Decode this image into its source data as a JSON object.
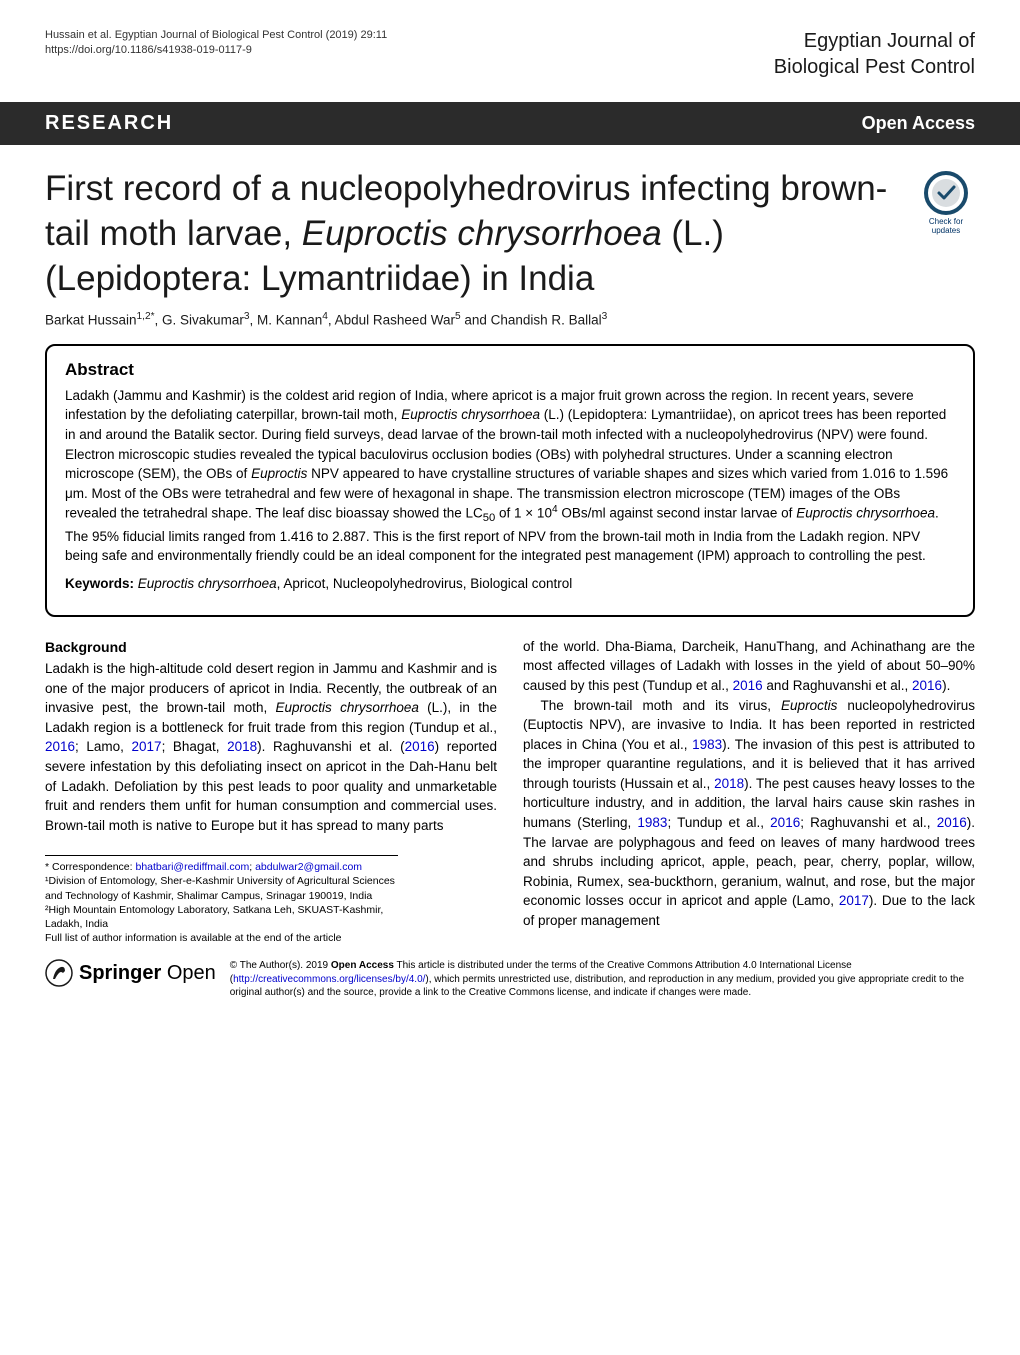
{
  "header": {
    "citation_line1": "Hussain et al. Egyptian Journal of Biological Pest Control       (2019) 29:11",
    "citation_line2": "https://doi.org/10.1186/s41938-019-0117-9",
    "journal_line1": "Egyptian Journal of",
    "journal_line2": "Biological Pest Control"
  },
  "banner": {
    "left": "RESEARCH",
    "right": "Open Access"
  },
  "checkmark": {
    "label": "Check for updates",
    "ring_color": "#194a6b",
    "inner_color": "#d9dde0"
  },
  "title": "First record of a nucleopolyhedrovirus infecting brown-tail moth larvae, Euproctis chrysorrhoea (L.) (Lepidoptera: Lymantriidae) in India",
  "authors_html": "Barkat Hussain<sup>1,2*</sup>, G. Sivakumar<sup>3</sup>, M. Kannan<sup>4</sup>, Abdul Rasheed War<sup>5</sup> and Chandish R. Ballal<sup>3</sup>",
  "abstract": {
    "heading": "Abstract",
    "body_html": "Ladakh (Jammu and Kashmir) is the coldest arid region of India, where apricot is a major fruit grown across the region. In recent years, severe infestation by the defoliating caterpillar, brown-tail moth, <span class=\"italic\">Euproctis chrysorrhoea</span> (L.) (Lepidoptera: Lymantriidae), on apricot trees has been reported in and around the Batalik sector. During field surveys, dead larvae of the brown-tail moth infected with a nucleopolyhedrovirus (NPV) were found. Electron microscopic studies revealed the typical baculovirus occlusion bodies (OBs) with polyhedral structures. Under a scanning electron microscope (SEM), the OBs of <span class=\"italic\">Euproctis</span> NPV appeared to have crystalline structures of variable shapes and sizes which varied from 1.016 to 1.596 μm. Most of the OBs were tetrahedral and few were of hexagonal in shape. The transmission electron microscope (TEM) images of the OBs revealed the tetrahedral shape. The leaf disc bioassay showed the LC<sub>50</sub> of 1 × 10<sup>4</sup> OBs/ml against second instar larvae of <span class=\"italic\">Euproctis chrysorrhoea</span>. The 95% fiducial limits ranged from 1.416 to 2.887. This is the first report of NPV from the brown-tail moth in India from the Ladakh region. NPV being safe and environmentally friendly could be an ideal component for the integrated pest management (IPM) approach to controlling the pest.",
    "keywords_label": "Keywords:",
    "keywords_value_html": " <span class=\"italic\">Euproctis chrysorrhoea</span>, Apricot, Nucleopolyhedrovirus, Biological control"
  },
  "body": {
    "background_head": "Background",
    "left_p1_html": "Ladakh is the high-altitude cold desert region in Jammu and Kashmir and is one of the major producers of apricot in India. Recently, the outbreak of an invasive pest, the brown-tail moth, <span class=\"italic\">Euproctis chrysorrhoea</span> (L.), in the Ladakh region is a bottleneck for fruit trade from this region (Tundup et al., <span class=\"ref-blue\">2016</span>; Lamo, <span class=\"ref-blue\">2017</span>; Bhagat, <span class=\"ref-blue\">2018</span>). Raghuvanshi et al. (<span class=\"ref-blue\">2016</span>) reported severe infestation by this defoliating insect on apricot in the Dah-Hanu belt of Ladakh. Defoliation by this pest leads to poor quality and unmarketable fruit and renders them unfit for human consumption and commercial uses. Brown-tail moth is native to Europe but it has spread to many parts",
    "right_p1_html": "of the world. Dha-Biama, Darcheik, HanuThang, and Achinathang are the most affected villages of Ladakh with losses in the yield of about 50–90% caused by this pest (Tundup et al., <span class=\"ref-blue\">2016</span> and Raghuvanshi et al., <span class=\"ref-blue\">2016</span>).",
    "right_p2_html": "The brown-tail moth and its virus, <span class=\"italic\">Euproctis</span> nucleopolyhedrovirus (Euptoctis NPV), are invasive to India. It has been reported in restricted places in China (You et al., <span class=\"ref-blue\">1983</span>). The invasion of this pest is attributed to the improper quarantine regulations, and it is believed that it has arrived through tourists (Hussain et al., <span class=\"ref-blue\">2018</span>). The pest causes heavy losses to the horticulture industry, and in addition, the larval hairs cause skin rashes in humans (Sterling, <span class=\"ref-blue\">1983</span>; Tundup et al., <span class=\"ref-blue\">2016</span>; Raghuvanshi et al., <span class=\"ref-blue\">2016</span>). The larvae are polyphagous and feed on leaves of many hardwood trees and shrubs including apricot, apple, peach, pear, cherry, poplar, willow, Robinia, Rumex, sea-buckthorn, geranium, walnut, and rose, but the major economic losses occur in apricot and apple (Lamo, <span class=\"ref-blue\">2017</span>). Due to the lack of proper management"
  },
  "footnotes": {
    "correspondence_html": "* Correspondence: <a href=\"#\">bhatbari@rediffmail.com</a>; <a href=\"#\">abdulwar2@gmail.com</a>",
    "aff1": "¹Division of Entomology, Sher-e-Kashmir University of Agricultural Sciences and Technology of Kashmir, Shalimar Campus, Srinagar 190019, India",
    "aff2": "²High Mountain Entomology Laboratory, Satkana Leh, SKUAST-Kashmir, Ladakh, India",
    "full_list": "Full list of author information is available at the end of the article"
  },
  "footer": {
    "logo_part1": "Springer",
    "logo_part2": "Open",
    "logo_color": "#1a1a1a",
    "license_html": "© The Author(s). 2019 <span class=\"bold\">Open Access</span> This article is distributed under the terms of the Creative Commons Attribution 4.0 International License (<a href=\"#\">http://creativecommons.org/licenses/by/4.0/</a>), which permits unrestricted use, distribution, and reproduction in any medium, provided you give appropriate credit to the original author(s) and the source, provide a link to the Creative Commons license, and indicate if changes were made."
  },
  "colors": {
    "banner_bg": "#2b2b2b",
    "text": "#000000",
    "link": "#0000cc"
  }
}
